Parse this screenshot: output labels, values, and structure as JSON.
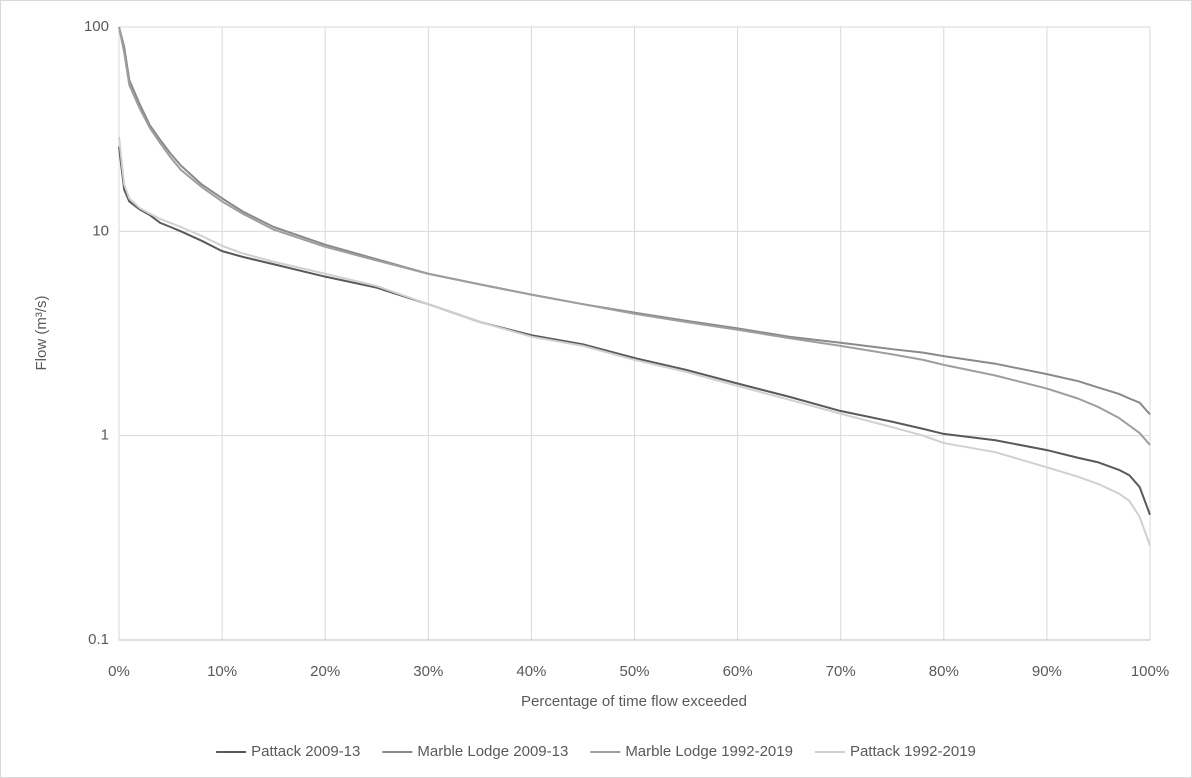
{
  "chart_data": {
    "type": "line",
    "log_y": true,
    "grid": true,
    "legend": "bottom",
    "xlabel": "Percentage of time flow exceeded",
    "ylabel": "Flow (m³/s)",
    "x": [
      0,
      0.5,
      1,
      2,
      3,
      4,
      5,
      6,
      8,
      10,
      12,
      15,
      20,
      25,
      30,
      35,
      40,
      45,
      50,
      55,
      60,
      65,
      70,
      75,
      78,
      80,
      85,
      90,
      93,
      95,
      97,
      98,
      99,
      100
    ],
    "xlim": [
      0,
      100
    ],
    "xticks": [
      {
        "value": 0,
        "label": "0%"
      },
      {
        "value": 10,
        "label": "10%"
      },
      {
        "value": 20,
        "label": "20%"
      },
      {
        "value": 30,
        "label": "30%"
      },
      {
        "value": 40,
        "label": "40%"
      },
      {
        "value": 50,
        "label": "50%"
      },
      {
        "value": 60,
        "label": "60%"
      },
      {
        "value": 70,
        "label": "70%"
      },
      {
        "value": 80,
        "label": "80%"
      },
      {
        "value": 90,
        "label": "90%"
      },
      {
        "value": 100,
        "label": "100%"
      }
    ],
    "ylim": [
      0.1,
      100
    ],
    "yticks": [
      0.1,
      1,
      10,
      100
    ],
    "series": [
      {
        "name": "Pattack 2009-13",
        "color": "#595959",
        "values": [
          26,
          16,
          14,
          12.8,
          12,
          11,
          10.5,
          10,
          9,
          8,
          7.5,
          6.9,
          6,
          5.3,
          4.4,
          3.6,
          3.1,
          2.8,
          2.4,
          2.1,
          1.8,
          1.55,
          1.32,
          1.17,
          1.08,
          1.02,
          0.95,
          0.85,
          0.78,
          0.74,
          0.68,
          0.64,
          0.56,
          0.41
        ]
      },
      {
        "name": "Marble Lodge 2009-13",
        "color": "#8a8a8a",
        "values": [
          100,
          80,
          55,
          42,
          33,
          28,
          24,
          21,
          17,
          14.5,
          12.5,
          10.5,
          8.6,
          7.3,
          6.2,
          5.5,
          4.9,
          4.4,
          4.0,
          3.65,
          3.35,
          3.05,
          2.85,
          2.65,
          2.55,
          2.45,
          2.25,
          2.0,
          1.85,
          1.72,
          1.6,
          1.52,
          1.45,
          1.27
        ]
      },
      {
        "name": "Marble Lodge 1992-2019",
        "color": "#9e9e9e",
        "values": [
          100,
          75,
          52,
          40,
          32,
          27,
          23,
          20,
          16.5,
          14,
          12.2,
          10.2,
          8.4,
          7.2,
          6.2,
          5.5,
          4.9,
          4.4,
          3.95,
          3.6,
          3.3,
          3.0,
          2.75,
          2.5,
          2.35,
          2.22,
          1.97,
          1.7,
          1.52,
          1.38,
          1.22,
          1.12,
          1.03,
          0.9
        ]
      },
      {
        "name": "Pattack 1992-2019",
        "color": "#d0d0d0",
        "values": [
          29,
          17,
          14.5,
          13,
          12.2,
          11.5,
          11,
          10.5,
          9.5,
          8.5,
          7.8,
          7.1,
          6.2,
          5.4,
          4.4,
          3.6,
          3.05,
          2.75,
          2.35,
          2.05,
          1.75,
          1.5,
          1.28,
          1.1,
          1.0,
          0.92,
          0.83,
          0.7,
          0.63,
          0.58,
          0.52,
          0.48,
          0.4,
          0.29
        ]
      }
    ]
  }
}
